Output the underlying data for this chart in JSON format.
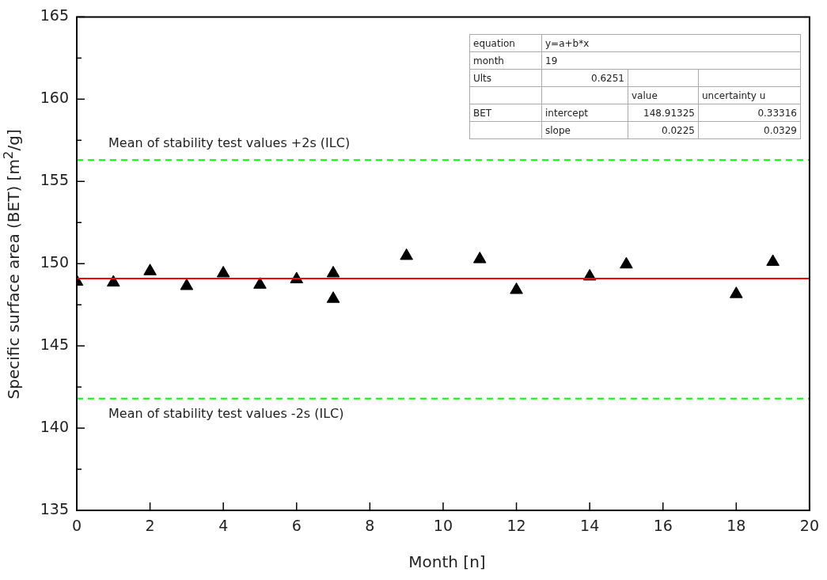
{
  "chart_data": {
    "type": "scatter",
    "xlabel": "Month [n]",
    "ylabel": "Specific surface area (BET) [m$^{2}$/g]",
    "xlim": [
      0,
      20
    ],
    "xticks": [
      0,
      2,
      4,
      6,
      8,
      10,
      12,
      14,
      16,
      18,
      20
    ],
    "ylim": [
      135,
      165
    ],
    "yticks": [
      135,
      {
        "value": 137.5,
        "label": null
      },
      140,
      {
        "value": 142.5,
        "label": null
      },
      145,
      {
        "value": 147.5,
        "label": null
      },
      150,
      {
        "value": 152.5,
        "label": null
      },
      155,
      {
        "value": 157.5,
        "label": null
      },
      160,
      {
        "value": 162.5,
        "label": null
      },
      165
    ],
    "grid": false,
    "legend": false,
    "marker": "triangle",
    "series": [
      {
        "color": "#000000",
        "x": [
          0,
          1,
          2,
          3,
          4,
          5,
          6,
          7,
          7,
          9,
          11,
          12,
          14,
          15,
          18,
          19
        ],
        "values": [
          148.9,
          148.85,
          149.54,
          148.64,
          149.41,
          148.72,
          149.05,
          149.41,
          147.86,
          150.47,
          150.27,
          148.4,
          149.22,
          149.95,
          148.15,
          150.11
        ]
      }
    ],
    "ref_lines": [
      {
        "axis": "y",
        "value": 156.3,
        "label": "Mean of stability test values +2s (ILC)",
        "color": "#00ff00",
        "line_style": "dashed"
      },
      {
        "axis": "y",
        "value": 149.1,
        "label": null,
        "color": "#ff0000",
        "line_style": "solid"
      },
      {
        "axis": "y",
        "value": 141.8,
        "label": "Mean of stability test values -2s (ILC)",
        "color": "#00ff00",
        "line_style": "dashed"
      }
    ],
    "annotations": [
      "equation",
      "y=a+b*x",
      "month",
      "19",
      "Ults",
      "0.6251",
      "value",
      "uncertainty u",
      "BET",
      "intercept",
      "148.91325",
      "0.33316",
      "slope",
      "0.0225",
      "0.0329"
    ]
  }
}
